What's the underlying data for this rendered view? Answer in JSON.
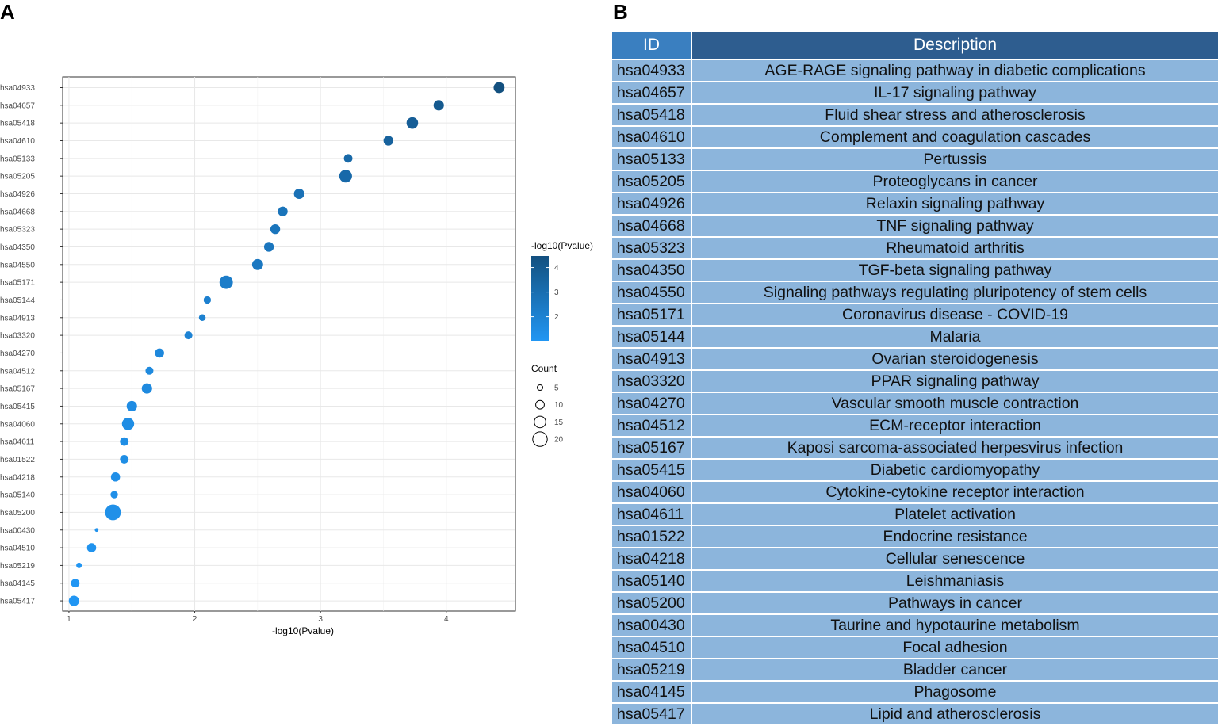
{
  "panels": {
    "a": "A",
    "b": "B"
  },
  "chart_data": {
    "type": "scatter",
    "xlabel": "-log10(Pvalue)",
    "ylabel": "",
    "xlim": [
      0.95,
      4.55
    ],
    "x_ticks": [
      1,
      2,
      3,
      4
    ],
    "grid": true,
    "categories": [
      "hsa04933",
      "hsa04657",
      "hsa05418",
      "hsa04610",
      "hsa05133",
      "hsa05205",
      "hsa04926",
      "hsa04668",
      "hsa05323",
      "hsa04350",
      "hsa04550",
      "hsa05171",
      "hsa05144",
      "hsa04913",
      "hsa03320",
      "hsa04270",
      "hsa04512",
      "hsa05167",
      "hsa05415",
      "hsa04060",
      "hsa04611",
      "hsa01522",
      "hsa04218",
      "hsa05140",
      "hsa05200",
      "hsa00430",
      "hsa04510",
      "hsa05219",
      "hsa04145",
      "hsa05417"
    ],
    "x": [
      4.42,
      3.94,
      3.73,
      3.54,
      3.22,
      3.2,
      2.83,
      2.7,
      2.64,
      2.59,
      2.5,
      2.25,
      2.1,
      2.06,
      1.95,
      1.72,
      1.64,
      1.62,
      1.5,
      1.47,
      1.44,
      1.44,
      1.37,
      1.36,
      1.35,
      1.22,
      1.18,
      1.08,
      1.05,
      1.04
    ],
    "count": [
      14,
      13,
      15,
      12,
      10,
      17,
      13,
      12,
      12,
      12,
      14,
      18,
      8,
      7,
      9,
      11,
      9,
      13,
      13,
      16,
      10,
      10,
      11,
      8,
      22,
      2,
      11,
      5,
      10,
      13
    ],
    "color_legend": {
      "title": "-log10(Pvalue)",
      "ticks": [
        2,
        3,
        4
      ],
      "range": [
        1.04,
        4.42
      ],
      "low": "#2196f3",
      "high": "#13507f"
    },
    "size_legend": {
      "title": "Count",
      "values": [
        5,
        10,
        15,
        20
      ]
    }
  },
  "table": {
    "headers": {
      "id": "ID",
      "description": "Description"
    },
    "rows": [
      {
        "id": "hsa04933",
        "description": "AGE-RAGE signaling pathway in diabetic complications"
      },
      {
        "id": "hsa04657",
        "description": "IL-17 signaling pathway"
      },
      {
        "id": "hsa05418",
        "description": "Fluid shear stress and atherosclerosis"
      },
      {
        "id": "hsa04610",
        "description": "Complement and coagulation cascades"
      },
      {
        "id": "hsa05133",
        "description": "Pertussis"
      },
      {
        "id": "hsa05205",
        "description": "Proteoglycans in cancer"
      },
      {
        "id": "hsa04926",
        "description": "Relaxin signaling pathway"
      },
      {
        "id": "hsa04668",
        "description": "TNF signaling pathway"
      },
      {
        "id": "hsa05323",
        "description": "Rheumatoid arthritis"
      },
      {
        "id": "hsa04350",
        "description": "TGF-beta signaling pathway"
      },
      {
        "id": "hsa04550",
        "description": "Signaling pathways regulating pluripotency of stem cells"
      },
      {
        "id": "hsa05171",
        "description": "Coronavirus disease - COVID-19"
      },
      {
        "id": "hsa05144",
        "description": "Malaria"
      },
      {
        "id": "hsa04913",
        "description": "Ovarian steroidogenesis"
      },
      {
        "id": "hsa03320",
        "description": "PPAR signaling pathway"
      },
      {
        "id": "hsa04270",
        "description": "Vascular smooth muscle contraction"
      },
      {
        "id": "hsa04512",
        "description": "ECM-receptor interaction"
      },
      {
        "id": "hsa05167",
        "description": "Kaposi sarcoma-associated herpesvirus infection"
      },
      {
        "id": "hsa05415",
        "description": "Diabetic cardiomyopathy"
      },
      {
        "id": "hsa04060",
        "description": "Cytokine-cytokine receptor interaction"
      },
      {
        "id": "hsa04611",
        "description": "Platelet activation"
      },
      {
        "id": "hsa01522",
        "description": "Endocrine resistance"
      },
      {
        "id": "hsa04218",
        "description": "Cellular senescence"
      },
      {
        "id": "hsa05140",
        "description": "Leishmaniasis"
      },
      {
        "id": "hsa05200",
        "description": "Pathways in cancer"
      },
      {
        "id": "hsa00430",
        "description": "Taurine and hypotaurine metabolism"
      },
      {
        "id": "hsa04510",
        "description": "Focal adhesion"
      },
      {
        "id": "hsa05219",
        "description": "Bladder cancer"
      },
      {
        "id": "hsa04145",
        "description": "Phagosome"
      },
      {
        "id": "hsa05417",
        "description": "Lipid and atherosclerosis"
      }
    ]
  }
}
